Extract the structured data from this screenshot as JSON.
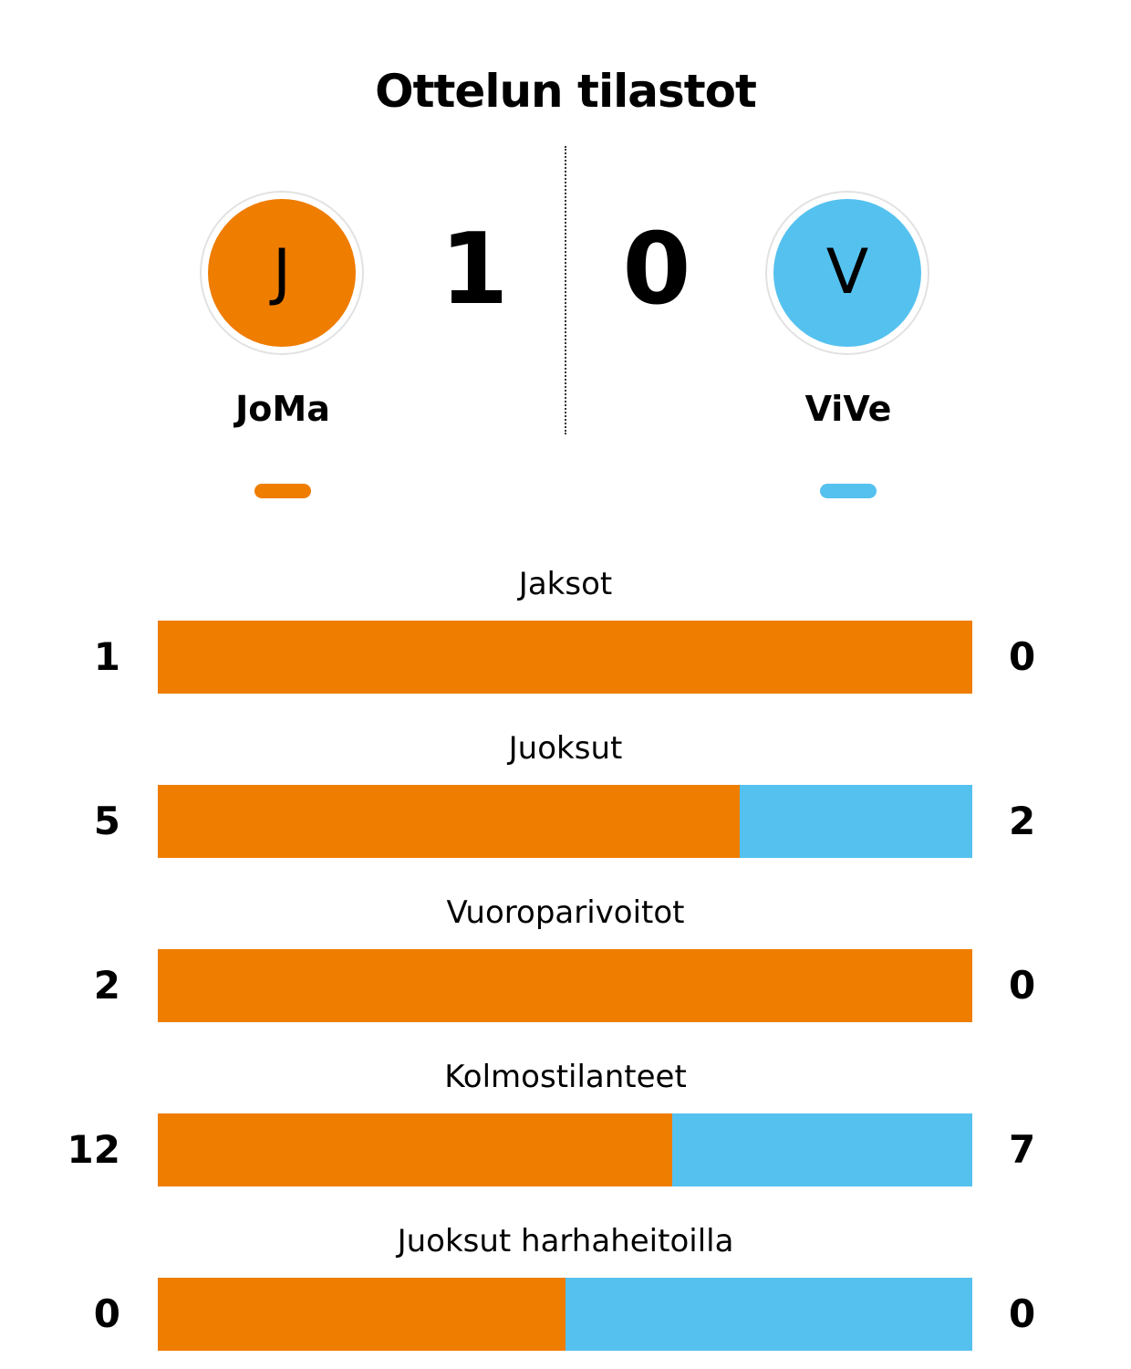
{
  "title": "Ottelun tilastot",
  "colors": {
    "home": "#ef7d00",
    "away": "#55c1ef"
  },
  "home": {
    "initial": "J",
    "name": "JoMa",
    "score": "1"
  },
  "away": {
    "initial": "V",
    "name": "ViVe",
    "score": "0"
  },
  "stats": [
    {
      "label": "Jaksot",
      "home": 1,
      "away": 0
    },
    {
      "label": "Juoksut",
      "home": 5,
      "away": 2
    },
    {
      "label": "Vuoroparivoitot",
      "home": 2,
      "away": 0
    },
    {
      "label": "Kolmostilanteet",
      "home": 12,
      "away": 7
    },
    {
      "label": "Juoksut harhaheitoilla",
      "home": 0,
      "away": 0
    }
  ]
}
